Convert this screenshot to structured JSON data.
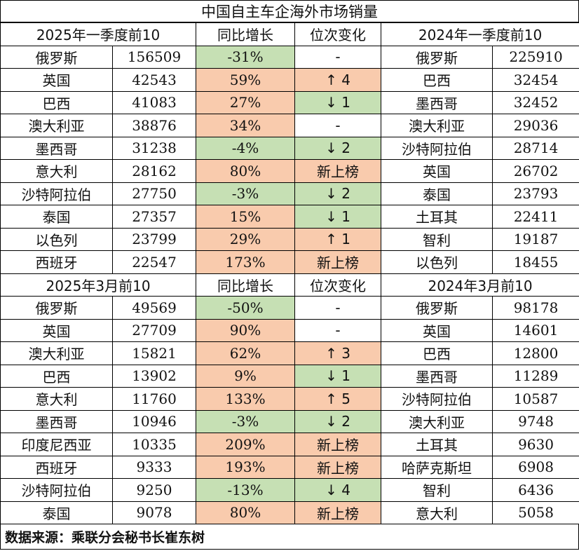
{
  "title": "中国自主车企海外市场销量",
  "colors": {
    "up": "#f9cbad",
    "down": "#c6e0b4"
  },
  "q1": {
    "headers": [
      "2025年一季度前10",
      "同比增长",
      "位次变化",
      "2024年一季度前10"
    ],
    "rows": [
      {
        "country": "俄罗斯",
        "sales": "156509",
        "yoy": "-31%",
        "yoy_dir": "down",
        "rank": "-",
        "rank_dir": "none",
        "prev_country": "俄罗斯",
        "prev_sales": "225910"
      },
      {
        "country": "英国",
        "sales": "42543",
        "yoy": "59%",
        "yoy_dir": "up",
        "rank": "↑ 4",
        "rank_dir": "up",
        "prev_country": "巴西",
        "prev_sales": "32454"
      },
      {
        "country": "巴西",
        "sales": "41083",
        "yoy": "27%",
        "yoy_dir": "up",
        "rank": "↓ 1",
        "rank_dir": "down",
        "prev_country": "墨西哥",
        "prev_sales": "32452"
      },
      {
        "country": "澳大利亚",
        "sales": "38876",
        "yoy": "34%",
        "yoy_dir": "up",
        "rank": "-",
        "rank_dir": "none",
        "prev_country": "澳大利亚",
        "prev_sales": "29036"
      },
      {
        "country": "墨西哥",
        "sales": "31238",
        "yoy": "-4%",
        "yoy_dir": "down",
        "rank": "↓ 2",
        "rank_dir": "down",
        "prev_country": "沙特阿拉伯",
        "prev_sales": "28714"
      },
      {
        "country": "意大利",
        "sales": "28162",
        "yoy": "80%",
        "yoy_dir": "up",
        "rank": "新上榜",
        "rank_dir": "up",
        "prev_country": "英国",
        "prev_sales": "26702"
      },
      {
        "country": "沙特阿拉伯",
        "sales": "27750",
        "yoy": "-3%",
        "yoy_dir": "down",
        "rank": "↓ 2",
        "rank_dir": "down",
        "prev_country": "泰国",
        "prev_sales": "23793"
      },
      {
        "country": "泰国",
        "sales": "27357",
        "yoy": "15%",
        "yoy_dir": "up",
        "rank": "↓ 1",
        "rank_dir": "down",
        "prev_country": "土耳其",
        "prev_sales": "22411"
      },
      {
        "country": "以色列",
        "sales": "23799",
        "yoy": "29%",
        "yoy_dir": "up",
        "rank": "↑ 1",
        "rank_dir": "up",
        "prev_country": "智利",
        "prev_sales": "19187"
      },
      {
        "country": "西班牙",
        "sales": "22547",
        "yoy": "173%",
        "yoy_dir": "up",
        "rank": "新上榜",
        "rank_dir": "up",
        "prev_country": "以色列",
        "prev_sales": "18455"
      }
    ]
  },
  "march": {
    "headers": [
      "2025年3月前10",
      "同比增长",
      "位次变化",
      "2024年3月前10"
    ],
    "rows": [
      {
        "country": "俄罗斯",
        "sales": "49569",
        "yoy": "-50%",
        "yoy_dir": "down",
        "rank": "-",
        "rank_dir": "none",
        "prev_country": "俄罗斯",
        "prev_sales": "98178"
      },
      {
        "country": "英国",
        "sales": "27709",
        "yoy": "90%",
        "yoy_dir": "up",
        "rank": "-",
        "rank_dir": "none",
        "prev_country": "英国",
        "prev_sales": "14601"
      },
      {
        "country": "澳大利亚",
        "sales": "15821",
        "yoy": "62%",
        "yoy_dir": "up",
        "rank": "↑ 3",
        "rank_dir": "up",
        "prev_country": "巴西",
        "prev_sales": "12800"
      },
      {
        "country": "巴西",
        "sales": "13902",
        "yoy": "9%",
        "yoy_dir": "up",
        "rank": "↓ 1",
        "rank_dir": "down",
        "prev_country": "墨西哥",
        "prev_sales": "11289"
      },
      {
        "country": "意大利",
        "sales": "11760",
        "yoy": "133%",
        "yoy_dir": "up",
        "rank": "↑ 5",
        "rank_dir": "up",
        "prev_country": "沙特阿拉伯",
        "prev_sales": "10587"
      },
      {
        "country": "墨西哥",
        "sales": "10946",
        "yoy": "-3%",
        "yoy_dir": "down",
        "rank": "↓ 2",
        "rank_dir": "down",
        "prev_country": "澳大利亚",
        "prev_sales": "9748"
      },
      {
        "country": "印度尼西亚",
        "sales": "10335",
        "yoy": "209%",
        "yoy_dir": "up",
        "rank": "新上榜",
        "rank_dir": "up",
        "prev_country": "土耳其",
        "prev_sales": "9630"
      },
      {
        "country": "西班牙",
        "sales": "9333",
        "yoy": "193%",
        "yoy_dir": "up",
        "rank": "新上榜",
        "rank_dir": "up",
        "prev_country": "哈萨克斯坦",
        "prev_sales": "6908"
      },
      {
        "country": "沙特阿拉伯",
        "sales": "9250",
        "yoy": "-13%",
        "yoy_dir": "down",
        "rank": "↓ 4",
        "rank_dir": "down",
        "prev_country": "智利",
        "prev_sales": "6436"
      },
      {
        "country": "泰国",
        "sales": "9078",
        "yoy": "80%",
        "yoy_dir": "up",
        "rank": "新上榜",
        "rank_dir": "up",
        "prev_country": "意大利",
        "prev_sales": "5058"
      }
    ]
  },
  "footer": "数据来源：乘联分会秘书长崔东树"
}
